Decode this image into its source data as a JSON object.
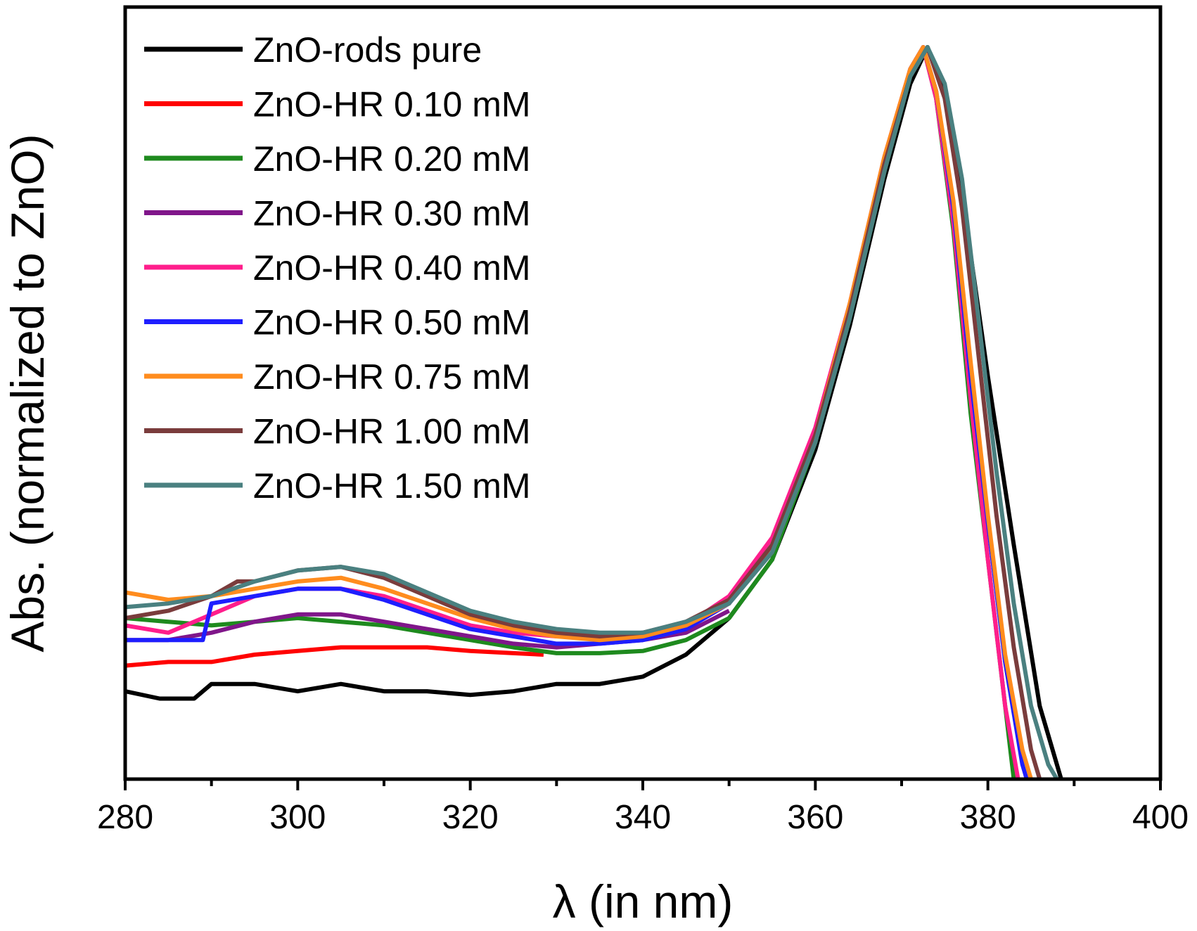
{
  "chart_data": {
    "type": "line",
    "title": "",
    "xlabel": "λ (in nm)",
    "ylabel": "Abs.  (normalized to ZnO)",
    "xlim": [
      280,
      400
    ],
    "ylim": [
      0,
      1
    ],
    "x_ticks": [
      280,
      300,
      320,
      340,
      360,
      380,
      400
    ],
    "y_ticks_visible": false,
    "grid": false,
    "legend_position": "top-left",
    "series": [
      {
        "name": "ZnO-rods pure",
        "color": "#000000",
        "points": [
          [
            280,
            0.12
          ],
          [
            284,
            0.11
          ],
          [
            288,
            0.11
          ],
          [
            290,
            0.13
          ],
          [
            295,
            0.13
          ],
          [
            300,
            0.12
          ],
          [
            305,
            0.13
          ],
          [
            310,
            0.12
          ],
          [
            315,
            0.12
          ],
          [
            320,
            0.115
          ],
          [
            325,
            0.12
          ],
          [
            330,
            0.13
          ],
          [
            335,
            0.13
          ],
          [
            340,
            0.14
          ],
          [
            345,
            0.17
          ],
          [
            350,
            0.22
          ],
          [
            355,
            0.3
          ],
          [
            360,
            0.45
          ],
          [
            364,
            0.62
          ],
          [
            368,
            0.82
          ],
          [
            371,
            0.95
          ],
          [
            373,
            1.0
          ],
          [
            375,
            0.94
          ],
          [
            377,
            0.8
          ],
          [
            380,
            0.55
          ],
          [
            383,
            0.32
          ],
          [
            386,
            0.1
          ],
          [
            388.5,
            0.0
          ]
        ]
      },
      {
        "name": "ZnO-HR 0.10 mM",
        "color": "#ff0000",
        "points": [
          [
            280,
            0.155
          ],
          [
            285,
            0.16
          ],
          [
            290,
            0.16
          ],
          [
            295,
            0.17
          ],
          [
            300,
            0.175
          ],
          [
            305,
            0.18
          ],
          [
            310,
            0.18
          ],
          [
            315,
            0.18
          ],
          [
            320,
            0.175
          ],
          [
            325,
            0.172
          ],
          [
            328.5,
            0.17
          ]
        ]
      },
      {
        "name": "ZnO-HR 0.20 mM",
        "color": "#1e8a1e",
        "points": [
          [
            280,
            0.22
          ],
          [
            285,
            0.215
          ],
          [
            290,
            0.21
          ],
          [
            295,
            0.215
          ],
          [
            300,
            0.22
          ],
          [
            305,
            0.215
          ],
          [
            310,
            0.21
          ],
          [
            315,
            0.2
          ],
          [
            320,
            0.19
          ],
          [
            325,
            0.18
          ],
          [
            330,
            0.172
          ],
          [
            335,
            0.172
          ],
          [
            340,
            0.175
          ],
          [
            345,
            0.19
          ],
          [
            350,
            0.22
          ],
          [
            355,
            0.3
          ],
          [
            360,
            0.46
          ],
          [
            364,
            0.63
          ],
          [
            368,
            0.83
          ],
          [
            371,
            0.96
          ],
          [
            372.5,
            1.0
          ],
          [
            374,
            0.93
          ],
          [
            376,
            0.75
          ],
          [
            378,
            0.5
          ],
          [
            380,
            0.3
          ],
          [
            382,
            0.1
          ],
          [
            383,
            0.0
          ]
        ]
      },
      {
        "name": "ZnO-HR 0.30 mM",
        "color": "#80168a",
        "points": [
          [
            280,
            0.19
          ],
          [
            285,
            0.19
          ],
          [
            290,
            0.2
          ],
          [
            295,
            0.215
          ],
          [
            300,
            0.225
          ],
          [
            305,
            0.225
          ],
          [
            310,
            0.215
          ],
          [
            315,
            0.205
          ],
          [
            320,
            0.195
          ],
          [
            325,
            0.185
          ],
          [
            330,
            0.18
          ],
          [
            335,
            0.185
          ],
          [
            340,
            0.19
          ],
          [
            345,
            0.2
          ],
          [
            350,
            0.23
          ]
        ]
      },
      {
        "name": "ZnO-HR 0.40 mM",
        "color": "#ff1e8c",
        "points": [
          [
            280,
            0.21
          ],
          [
            285,
            0.2
          ],
          [
            290,
            0.225
          ],
          [
            295,
            0.25
          ],
          [
            300,
            0.26
          ],
          [
            305,
            0.26
          ],
          [
            310,
            0.25
          ],
          [
            315,
            0.23
          ],
          [
            320,
            0.21
          ],
          [
            325,
            0.2
          ],
          [
            330,
            0.195
          ],
          [
            335,
            0.195
          ],
          [
            340,
            0.2
          ],
          [
            345,
            0.21
          ],
          [
            350,
            0.25
          ],
          [
            355,
            0.33
          ],
          [
            360,
            0.48
          ],
          [
            364,
            0.65
          ],
          [
            368,
            0.85
          ],
          [
            371,
            0.97
          ],
          [
            372.5,
            1.0
          ],
          [
            374,
            0.93
          ],
          [
            376,
            0.76
          ],
          [
            378,
            0.52
          ],
          [
            380,
            0.3
          ],
          [
            382,
            0.1
          ],
          [
            383.5,
            0.0
          ]
        ]
      },
      {
        "name": "ZnO-HR 0.50 mM",
        "color": "#1e1eff",
        "points": [
          [
            280,
            0.19
          ],
          [
            285,
            0.19
          ],
          [
            289,
            0.19
          ],
          [
            290,
            0.24
          ],
          [
            295,
            0.25
          ],
          [
            300,
            0.26
          ],
          [
            305,
            0.26
          ],
          [
            310,
            0.245
          ],
          [
            315,
            0.225
          ],
          [
            320,
            0.205
          ],
          [
            325,
            0.195
          ],
          [
            330,
            0.185
          ],
          [
            335,
            0.185
          ],
          [
            340,
            0.19
          ],
          [
            345,
            0.205
          ],
          [
            350,
            0.24
          ],
          [
            355,
            0.32
          ],
          [
            360,
            0.47
          ],
          [
            364,
            0.64
          ],
          [
            368,
            0.84
          ],
          [
            371,
            0.97
          ],
          [
            372.5,
            1.0
          ],
          [
            374,
            0.94
          ],
          [
            376,
            0.78
          ],
          [
            378,
            0.55
          ],
          [
            380,
            0.35
          ],
          [
            382,
            0.16
          ],
          [
            384,
            0.02
          ],
          [
            384.5,
            0.0
          ]
        ]
      },
      {
        "name": "ZnO-HR 0.75 mM",
        "color": "#ff8c1e",
        "points": [
          [
            280,
            0.255
          ],
          [
            285,
            0.245
          ],
          [
            290,
            0.25
          ],
          [
            295,
            0.26
          ],
          [
            300,
            0.27
          ],
          [
            305,
            0.275
          ],
          [
            310,
            0.26
          ],
          [
            315,
            0.24
          ],
          [
            320,
            0.22
          ],
          [
            325,
            0.205
          ],
          [
            330,
            0.195
          ],
          [
            335,
            0.19
          ],
          [
            340,
            0.195
          ],
          [
            345,
            0.21
          ],
          [
            350,
            0.24
          ],
          [
            355,
            0.32
          ],
          [
            360,
            0.47
          ],
          [
            364,
            0.65
          ],
          [
            368,
            0.85
          ],
          [
            371,
            0.97
          ],
          [
            372.5,
            1.0
          ],
          [
            374,
            0.94
          ],
          [
            376,
            0.79
          ],
          [
            378,
            0.57
          ],
          [
            380,
            0.36
          ],
          [
            382,
            0.17
          ],
          [
            384,
            0.04
          ],
          [
            385,
            0.0
          ]
        ]
      },
      {
        "name": "ZnO-HR 1.00 mM",
        "color": "#7a3c3c",
        "points": [
          [
            280,
            0.22
          ],
          [
            285,
            0.23
          ],
          [
            290,
            0.25
          ],
          [
            293,
            0.27
          ],
          [
            295,
            0.27
          ],
          [
            300,
            0.285
          ],
          [
            305,
            0.29
          ],
          [
            310,
            0.275
          ],
          [
            315,
            0.25
          ],
          [
            320,
            0.225
          ],
          [
            325,
            0.21
          ],
          [
            330,
            0.2
          ],
          [
            335,
            0.195
          ],
          [
            340,
            0.2
          ],
          [
            345,
            0.215
          ],
          [
            350,
            0.245
          ],
          [
            355,
            0.32
          ],
          [
            360,
            0.47
          ],
          [
            364,
            0.64
          ],
          [
            368,
            0.84
          ],
          [
            371,
            0.96
          ],
          [
            373,
            1.0
          ],
          [
            375,
            0.93
          ],
          [
            377,
            0.78
          ],
          [
            379,
            0.57
          ],
          [
            381,
            0.36
          ],
          [
            383,
            0.18
          ],
          [
            385,
            0.04
          ],
          [
            386,
            0.0
          ]
        ]
      },
      {
        "name": "ZnO-HR 1.50 mM",
        "color": "#4a8080",
        "points": [
          [
            280,
            0.235
          ],
          [
            285,
            0.24
          ],
          [
            290,
            0.25
          ],
          [
            295,
            0.27
          ],
          [
            300,
            0.285
          ],
          [
            305,
            0.29
          ],
          [
            310,
            0.28
          ],
          [
            315,
            0.255
          ],
          [
            320,
            0.23
          ],
          [
            325,
            0.215
          ],
          [
            330,
            0.205
          ],
          [
            335,
            0.2
          ],
          [
            340,
            0.2
          ],
          [
            345,
            0.215
          ],
          [
            350,
            0.24
          ],
          [
            355,
            0.31
          ],
          [
            360,
            0.46
          ],
          [
            364,
            0.63
          ],
          [
            368,
            0.83
          ],
          [
            371,
            0.96
          ],
          [
            373,
            1.0
          ],
          [
            375,
            0.95
          ],
          [
            377,
            0.82
          ],
          [
            379,
            0.62
          ],
          [
            381,
            0.42
          ],
          [
            383,
            0.24
          ],
          [
            385,
            0.1
          ],
          [
            387,
            0.02
          ],
          [
            388,
            0.0
          ]
        ]
      }
    ]
  }
}
